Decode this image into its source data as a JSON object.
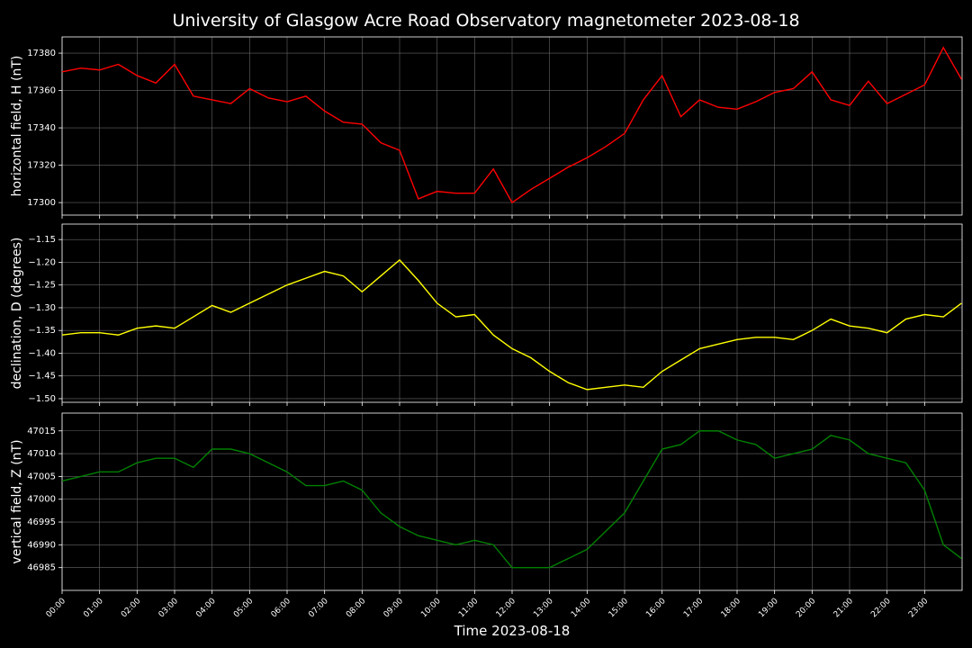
{
  "title": "University of Glasgow Acre Road Observatory magnetometer 2023-08-18",
  "xlabel": "Time 2023-08-18",
  "x": [
    "00:00",
    "00:30",
    "01:00",
    "01:30",
    "02:00",
    "02:30",
    "03:00",
    "03:30",
    "04:00",
    "04:30",
    "05:00",
    "05:30",
    "06:00",
    "06:30",
    "07:00",
    "07:30",
    "08:00",
    "08:30",
    "09:00",
    "09:30",
    "10:00",
    "10:30",
    "11:00",
    "11:30",
    "12:00",
    "12:30",
    "13:00",
    "13:30",
    "14:00",
    "14:30",
    "15:00",
    "15:30",
    "16:00",
    "16:30",
    "17:00",
    "17:30",
    "18:00",
    "18:30",
    "19:00",
    "19:30",
    "20:00",
    "20:30",
    "21:00",
    "21:30",
    "22:00",
    "22:30",
    "23:00",
    "23:30",
    "23:59"
  ],
  "xlim": [
    "00:00",
    "24:00"
  ],
  "xticks": [
    "00:00",
    "01:00",
    "02:00",
    "03:00",
    "04:00",
    "05:00",
    "06:00",
    "07:00",
    "08:00",
    "09:00",
    "10:00",
    "11:00",
    "12:00",
    "13:00",
    "14:00",
    "15:00",
    "16:00",
    "17:00",
    "18:00",
    "19:00",
    "20:00",
    "21:00",
    "22:00",
    "23:00"
  ],
  "grid": true,
  "chart_data": [
    {
      "type": "line",
      "ylabel": "horizontal field, H (nT)",
      "color": "#ff0000",
      "values": [
        17370,
        17372,
        17371,
        17374,
        17368,
        17364,
        17374,
        17357,
        17355,
        17353,
        17361,
        17356,
        17354,
        17357,
        17349,
        17343,
        17342,
        17332,
        17328,
        17302,
        17306,
        17305,
        17305,
        17318,
        17300,
        17307,
        17313,
        17319,
        17324,
        17330,
        17337,
        17355,
        17368,
        17346,
        17355,
        17351,
        17350,
        17354,
        17359,
        17361,
        17370,
        17355,
        17352,
        17365,
        17353,
        17358,
        17363,
        17383,
        17366
      ],
      "ylim": [
        17293.3,
        17388.7
      ],
      "yticks": [
        17300,
        17320,
        17340,
        17360,
        17380
      ]
    },
    {
      "type": "line",
      "ylabel": "declination, D (degrees)",
      "color": "#ffff00",
      "values": [
        -1.36,
        -1.355,
        -1.355,
        -1.36,
        -1.345,
        -1.34,
        -1.345,
        -1.32,
        -1.295,
        -1.31,
        -1.29,
        -1.27,
        -1.25,
        -1.235,
        -1.22,
        -1.23,
        -1.265,
        -1.23,
        -1.195,
        -1.24,
        -1.29,
        -1.32,
        -1.315,
        -1.36,
        -1.39,
        -1.41,
        -1.44,
        -1.465,
        -1.48,
        -1.475,
        -1.47,
        -1.475,
        -1.44,
        -1.415,
        -1.39,
        -1.38,
        -1.37,
        -1.365,
        -1.365,
        -1.37,
        -1.35,
        -1.325,
        -1.34,
        -1.345,
        -1.355,
        -1.325,
        -1.315,
        -1.32,
        -1.29
      ],
      "ylim": [
        -1.508,
        -1.116
      ],
      "yticks": [
        {
          "value": -1.5,
          "label": "−1.50"
        },
        {
          "value": -1.45,
          "label": "−1.45"
        },
        {
          "value": -1.4,
          "label": "−1.40"
        },
        {
          "value": -1.35,
          "label": "−1.35"
        },
        {
          "value": -1.3,
          "label": "−1.30"
        },
        {
          "value": -1.25,
          "label": "−1.25"
        },
        {
          "value": -1.2,
          "label": "−1.20"
        },
        {
          "value": -1.15,
          "label": "−1.15"
        }
      ]
    },
    {
      "type": "line",
      "ylabel": "vertical field, Z (nT)",
      "color": "#008000",
      "values": [
        47004,
        47005,
        47006,
        47006,
        47008,
        47009,
        47009,
        47007,
        47011,
        47011,
        47010,
        47008,
        47006,
        47003,
        47003,
        47004,
        47002,
        46997,
        46994,
        46992,
        46991,
        46990,
        46991,
        46990,
        46985,
        46985,
        46985,
        46987,
        46989,
        46993,
        46997,
        47004,
        47011,
        47012,
        47015,
        47015,
        47013,
        47012,
        47009,
        47010,
        47011,
        47014,
        47013,
        47010,
        47009,
        47008,
        47002,
        46990,
        46987
      ],
      "ylim": [
        46980,
        47018.9
      ],
      "yticks": [
        46985,
        46990,
        46995,
        47000,
        47005,
        47010,
        47015
      ]
    }
  ]
}
